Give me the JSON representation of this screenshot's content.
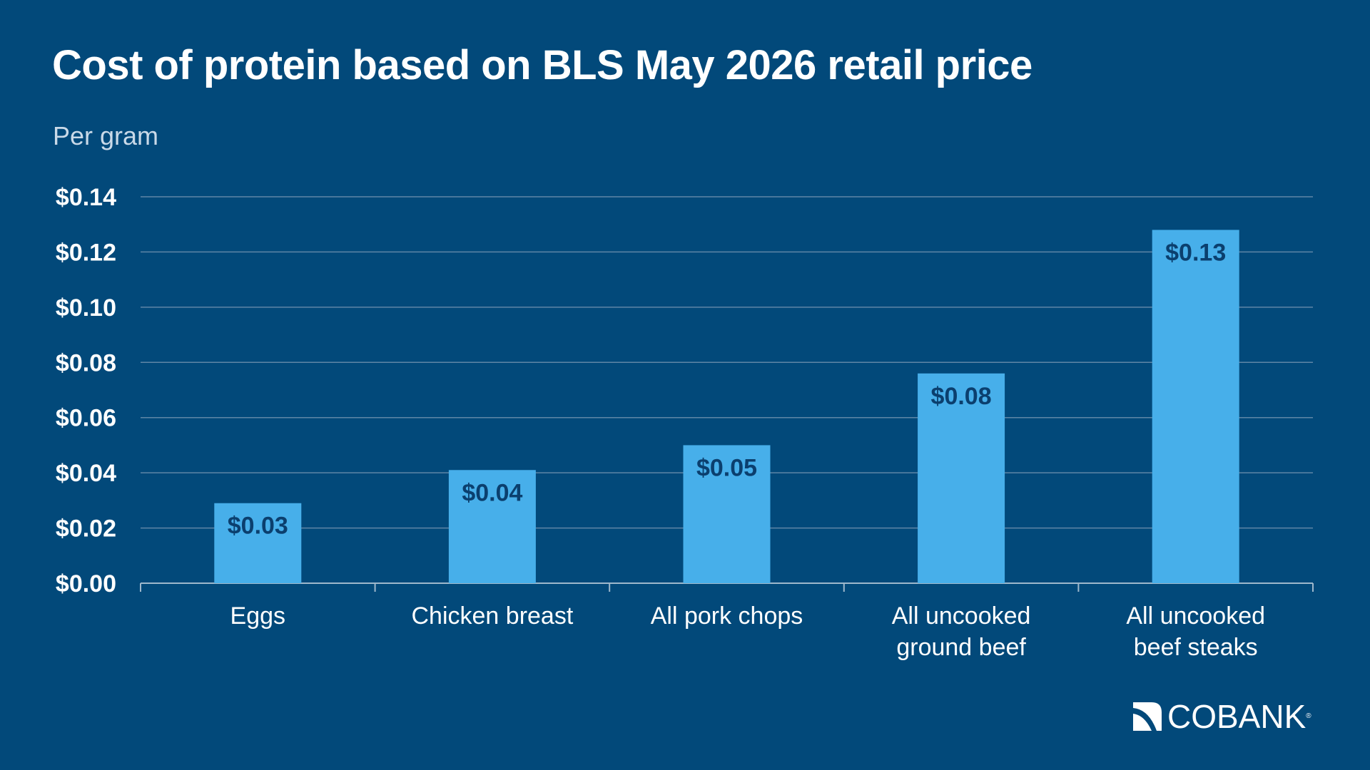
{
  "title": "Cost of protein based on BLS May 2026 retail price",
  "subtitle": "Per gram",
  "brand": {
    "name": "COBANK",
    "reg_mark": "®"
  },
  "colors": {
    "background": "#02497A",
    "bar": "#47AFEA",
    "bar_label": "#0B3F6E",
    "gridline": "#5F86A6",
    "text": "#FFFFFF"
  },
  "chart_data": {
    "type": "bar",
    "categories": [
      [
        "Eggs"
      ],
      [
        "Chicken breast"
      ],
      [
        "All pork chops"
      ],
      [
        "All uncooked",
        "ground beef"
      ],
      [
        "All uncooked",
        "beef steaks"
      ]
    ],
    "values": [
      0.029,
      0.041,
      0.05,
      0.076,
      0.128
    ],
    "data_labels": [
      "$0.03",
      "$0.04",
      "$0.05",
      "$0.08",
      "$0.13"
    ],
    "ylim": [
      0,
      0.14
    ],
    "yticks": [
      0,
      0.02,
      0.04,
      0.06,
      0.08,
      0.1,
      0.12,
      0.14
    ],
    "ytick_labels": [
      "$0.00",
      "$0.02",
      "$0.04",
      "$0.06",
      "$0.08",
      "$0.10",
      "$0.12",
      "$0.14"
    ],
    "grid": true,
    "legend": "none",
    "xlabel": "",
    "ylabel": ""
  }
}
